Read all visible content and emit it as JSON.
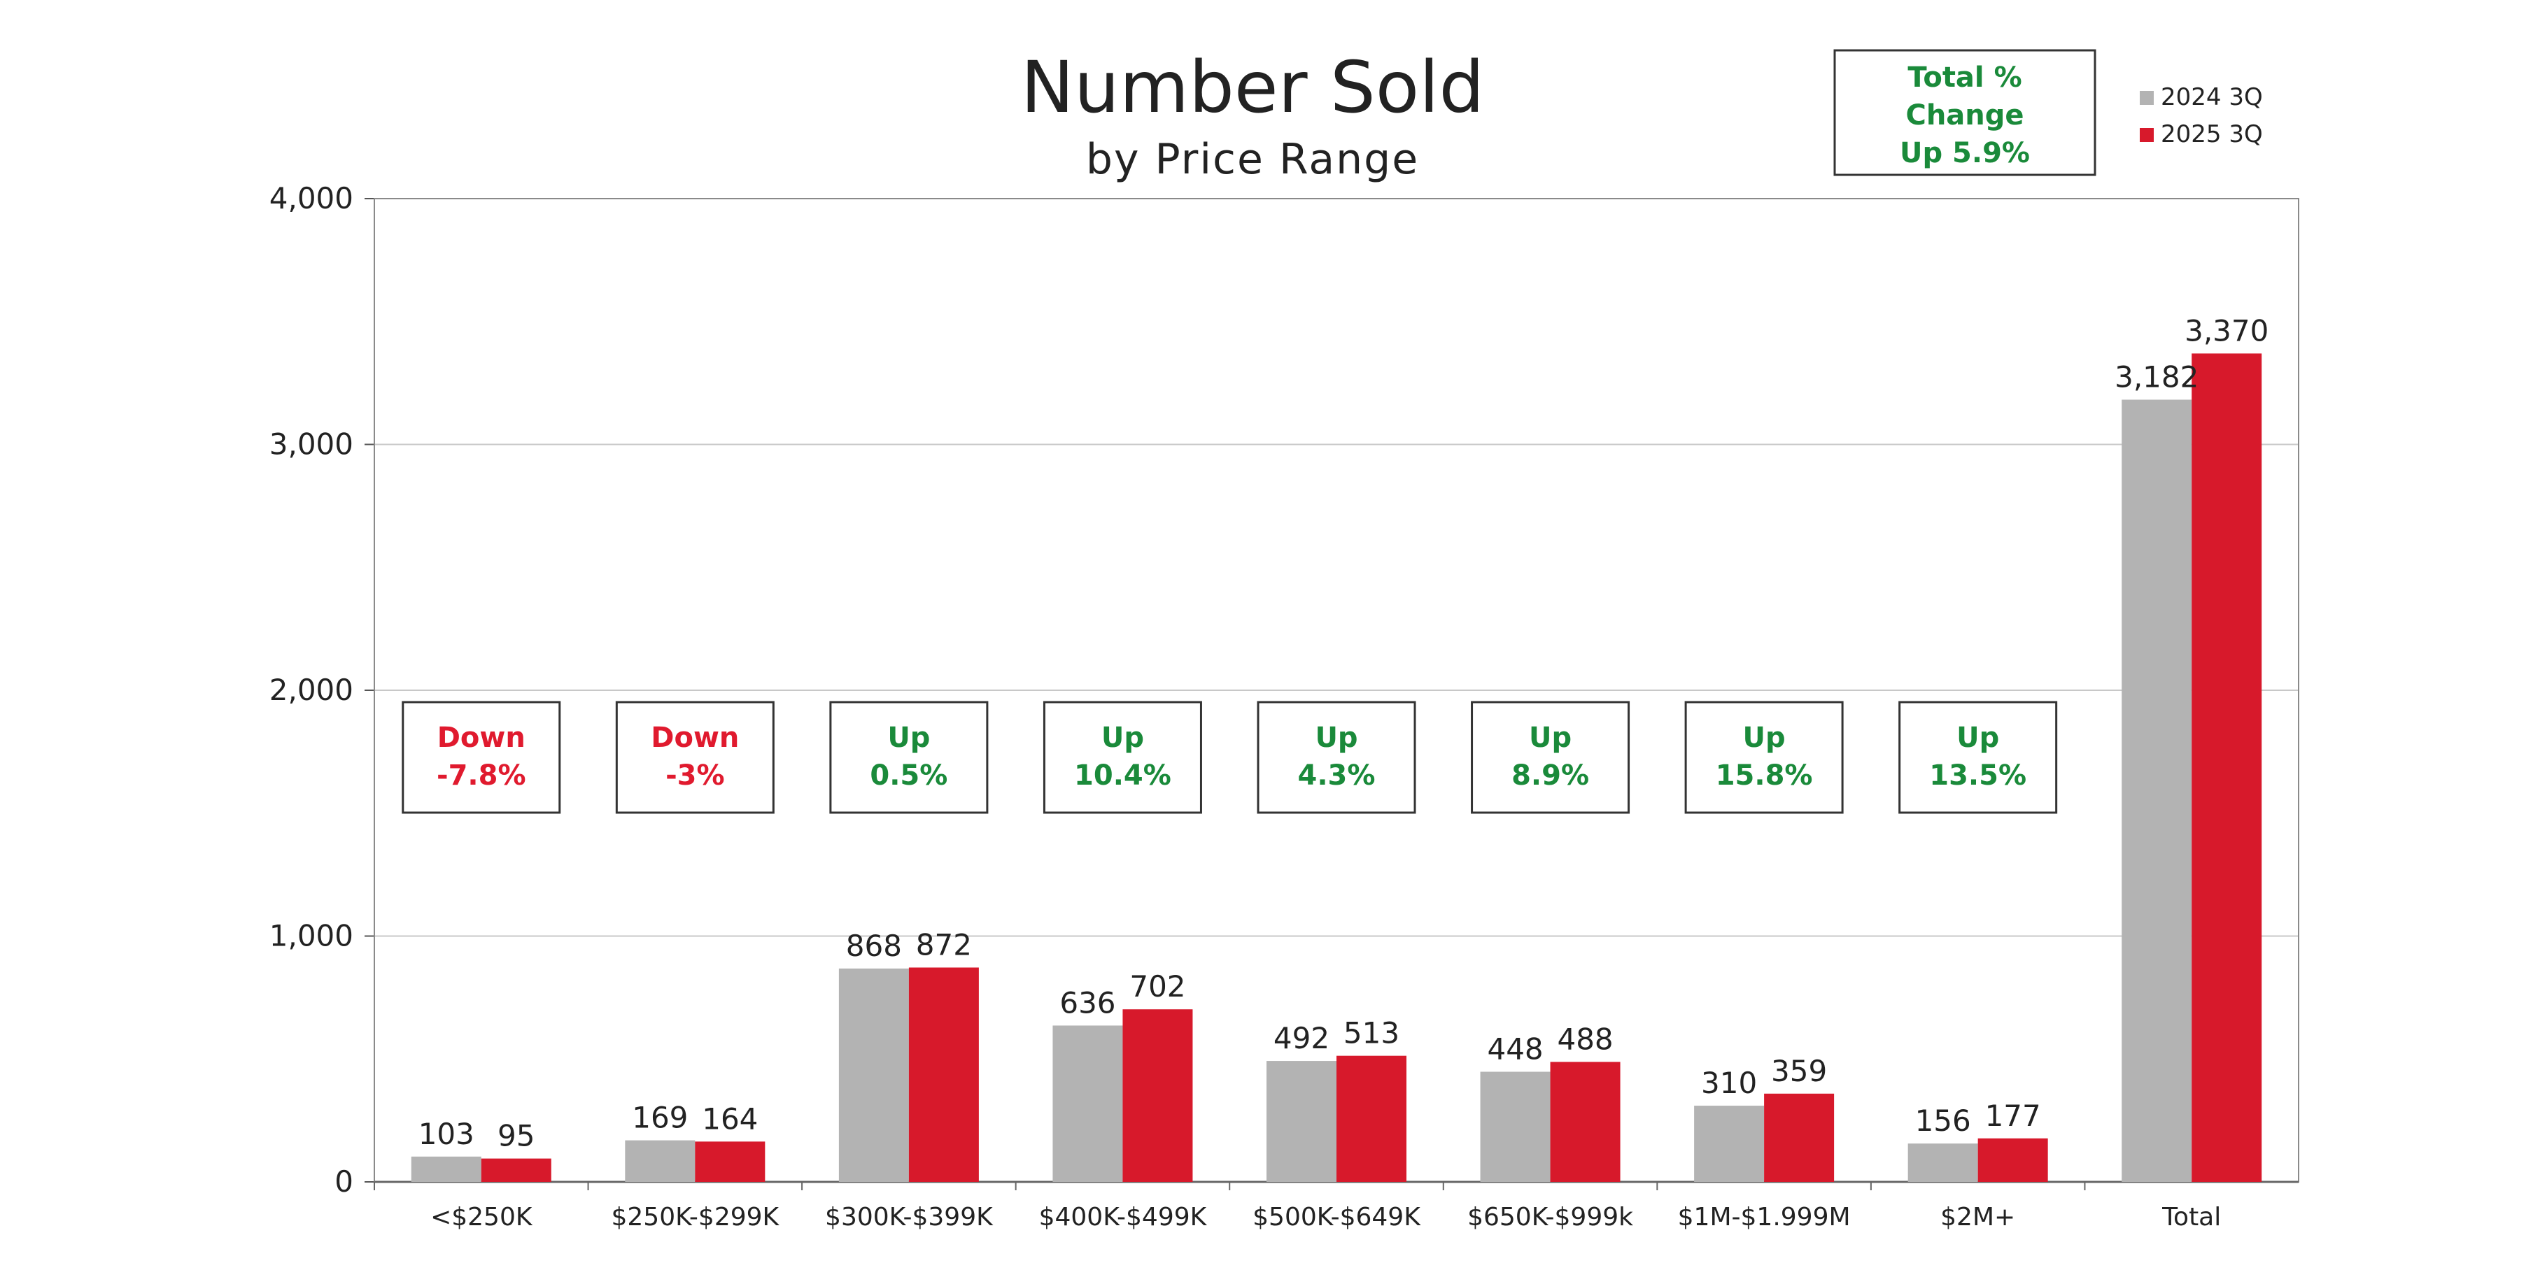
{
  "chart_data": {
    "type": "bar",
    "title": "Number Sold",
    "subtitle": "by Price Range",
    "categories": [
      "<$250K",
      "$250K-$299K",
      "$300K-$399K",
      "$400K-$499K",
      "$500K-$649K",
      "$650K-$999k",
      "$1M-$1.999M",
      "$2M+",
      "Total"
    ],
    "series": [
      {
        "name": "2024 3Q",
        "color": "#b3b3b3",
        "values": [
          103,
          169,
          868,
          636,
          492,
          448,
          310,
          156,
          3182
        ],
        "labels": [
          "103",
          "169",
          "868",
          "636",
          "492",
          "448",
          "310",
          "156",
          "3,182"
        ]
      },
      {
        "name": "2025 3Q",
        "color": "#d7192b",
        "values": [
          95,
          164,
          872,
          702,
          513,
          488,
          359,
          177,
          3370
        ],
        "labels": [
          "95",
          "164",
          "872",
          "702",
          "513",
          "488",
          "359",
          "177",
          "3,370"
        ]
      }
    ],
    "ylim": [
      0,
      4000
    ],
    "yticks": [
      0,
      1000,
      2000,
      3000,
      4000
    ],
    "ytick_labels": [
      "0",
      "1,000",
      "2,000",
      "3,000",
      "4,000"
    ],
    "grid": true,
    "legend": "top-right",
    "changes": [
      {
        "direction": "Down",
        "value": "-7.8%",
        "color": "#e01a2e"
      },
      {
        "direction": "Down",
        "value": "-3%",
        "color": "#e01a2e"
      },
      {
        "direction": "Up",
        "value": "0.5%",
        "color": "#1a8a3a"
      },
      {
        "direction": "Up",
        "value": "10.4%",
        "color": "#1a8a3a"
      },
      {
        "direction": "Up",
        "value": "4.3%",
        "color": "#1a8a3a"
      },
      {
        "direction": "Up",
        "value": "8.9%",
        "color": "#1a8a3a"
      },
      {
        "direction": "Up",
        "value": "15.8%",
        "color": "#1a8a3a"
      },
      {
        "direction": "Up",
        "value": "13.5%",
        "color": "#1a8a3a"
      }
    ],
    "total_change": {
      "line1": "Total %",
      "line2": "Change",
      "line3": "Up 5.9%"
    }
  }
}
